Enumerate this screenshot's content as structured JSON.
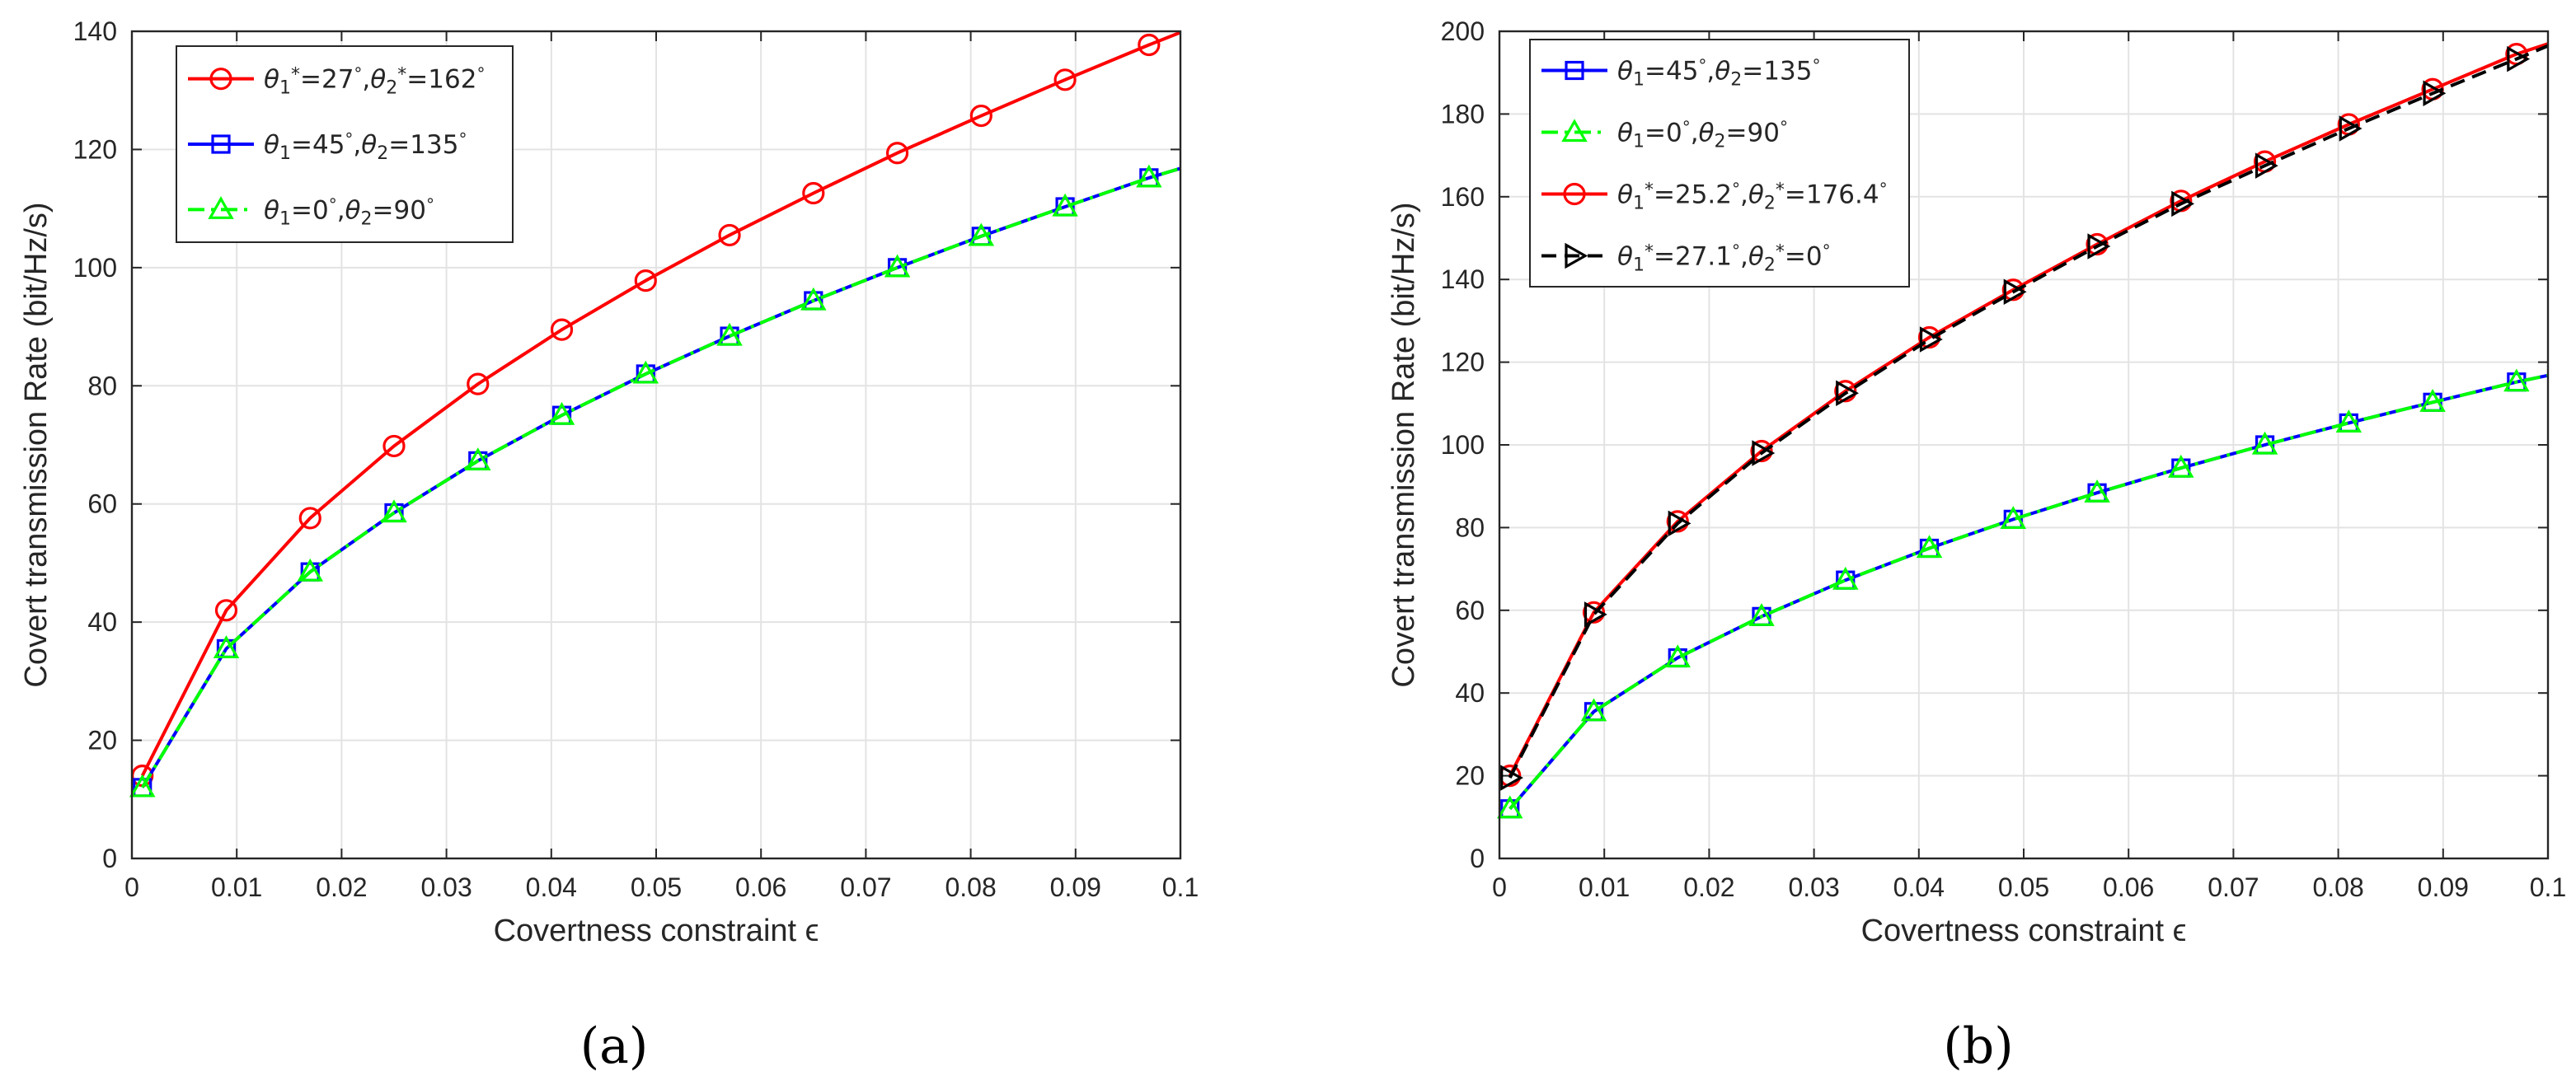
{
  "chart_data": [
    {
      "type": "line",
      "xlabel": "Covertness constraint ϵ",
      "ylabel": "Covert transmission Rate (bit/Hz/s)",
      "xlim": [
        0,
        0.1
      ],
      "ylim": [
        0,
        140
      ],
      "xticks": [
        "0",
        "0.01",
        "0.02",
        "0.03",
        "0.04",
        "0.05",
        "0.06",
        "0.07",
        "0.08",
        "0.09",
        "0.1"
      ],
      "yticks": [
        "0",
        "20",
        "40",
        "60",
        "80",
        "100",
        "120",
        "140"
      ],
      "grid": true,
      "legend_position": "top-left",
      "panel_label": "(a)",
      "series": [
        {
          "name": "θ₁*=27°,θ₂*=162°",
          "color": "#ff0000",
          "dash": "solid",
          "marker": "circle",
          "x": [
            0.001,
            0.009,
            0.017,
            0.025,
            0.033,
            0.041,
            0.049,
            0.057,
            0.065,
            0.073,
            0.081,
            0.089,
            0.097,
            0.1
          ],
          "values": [
            14,
            42,
            57.6,
            69.8,
            80.3,
            89.5,
            97.8,
            105.5,
            112.6,
            119.4,
            125.7,
            131.8,
            137.7,
            139.8
          ]
        },
        {
          "name": "θ₁=45°,θ₂=135°",
          "color": "#0000ff",
          "dash": "solid",
          "marker": "square",
          "x": [
            0.001,
            0.009,
            0.017,
            0.025,
            0.033,
            0.041,
            0.049,
            0.057,
            0.065,
            0.073,
            0.081,
            0.089,
            0.097,
            0.1
          ],
          "values": [
            12,
            35.5,
            48.5,
            58.5,
            67.3,
            75,
            82,
            88.4,
            94.4,
            100,
            105.3,
            110.3,
            115.2,
            116.8
          ]
        },
        {
          "name": "θ₁=0°,θ₂=90°",
          "color": "#00ff00",
          "dash": "dashdot",
          "marker": "triangle",
          "x": [
            0.001,
            0.009,
            0.017,
            0.025,
            0.033,
            0.041,
            0.049,
            0.057,
            0.065,
            0.073,
            0.081,
            0.089,
            0.097,
            0.1
          ],
          "values": [
            12,
            35.5,
            48.5,
            58.5,
            67.3,
            75,
            82,
            88.4,
            94.4,
            100,
            105.3,
            110.3,
            115.2,
            116.8
          ]
        }
      ]
    },
    {
      "type": "line",
      "xlabel": "Covertness constraint ϵ",
      "ylabel": "Covert transmission Rate (bit/Hz/s)",
      "xlim": [
        0,
        0.1
      ],
      "ylim": [
        0,
        200
      ],
      "xticks": [
        "0",
        "0.01",
        "0.02",
        "0.03",
        "0.04",
        "0.05",
        "0.06",
        "0.07",
        "0.08",
        "0.09",
        "0.1"
      ],
      "yticks": [
        "0",
        "20",
        "40",
        "60",
        "80",
        "100",
        "120",
        "140",
        "160",
        "180",
        "200"
      ],
      "grid": true,
      "legend_position": "top-left",
      "panel_label": "(b)",
      "series": [
        {
          "name": "θ₁=45°,θ₂=135°",
          "color": "#0000ff",
          "dash": "solid",
          "marker": "square",
          "x": [
            0.001,
            0.009,
            0.017,
            0.025,
            0.033,
            0.041,
            0.049,
            0.057,
            0.065,
            0.073,
            0.081,
            0.089,
            0.097,
            0.1
          ],
          "values": [
            12,
            35.5,
            48.5,
            58.5,
            67.3,
            75,
            82,
            88.4,
            94.4,
            100,
            105.3,
            110.3,
            115.2,
            116.8
          ]
        },
        {
          "name": "θ₁=0°,θ₂=90°",
          "color": "#00ff00",
          "dash": "dashdot",
          "marker": "triangle",
          "x": [
            0.001,
            0.009,
            0.017,
            0.025,
            0.033,
            0.041,
            0.049,
            0.057,
            0.065,
            0.073,
            0.081,
            0.089,
            0.097,
            0.1
          ],
          "values": [
            12,
            35.5,
            48.5,
            58.5,
            67.3,
            75,
            82,
            88.4,
            94.4,
            100,
            105.3,
            110.3,
            115.2,
            116.8
          ]
        },
        {
          "name": "θ₁*=25.2°,θ₂*=176.4°",
          "color": "#ff0000",
          "dash": "solid",
          "marker": "circle",
          "x": [
            0.001,
            0.009,
            0.017,
            0.025,
            0.033,
            0.041,
            0.049,
            0.057,
            0.065,
            0.073,
            0.081,
            0.089,
            0.097,
            0.1
          ],
          "values": [
            20,
            59.5,
            81.5,
            98.5,
            113,
            126,
            137.5,
            148.5,
            159,
            168.5,
            177.5,
            186,
            194.5,
            197
          ]
        },
        {
          "name": "θ₁*=27.1°,θ₂*=0°",
          "color": "#000000",
          "dash": "dashed",
          "marker": "triangle-right",
          "x": [
            0.001,
            0.009,
            0.017,
            0.025,
            0.033,
            0.041,
            0.049,
            0.057,
            0.065,
            0.073,
            0.081,
            0.089,
            0.097,
            0.1
          ],
          "values": [
            19.5,
            59,
            81,
            98,
            112.5,
            125.5,
            137,
            148,
            158.3,
            167.5,
            176.5,
            185,
            193.3,
            196.5
          ]
        }
      ]
    }
  ]
}
